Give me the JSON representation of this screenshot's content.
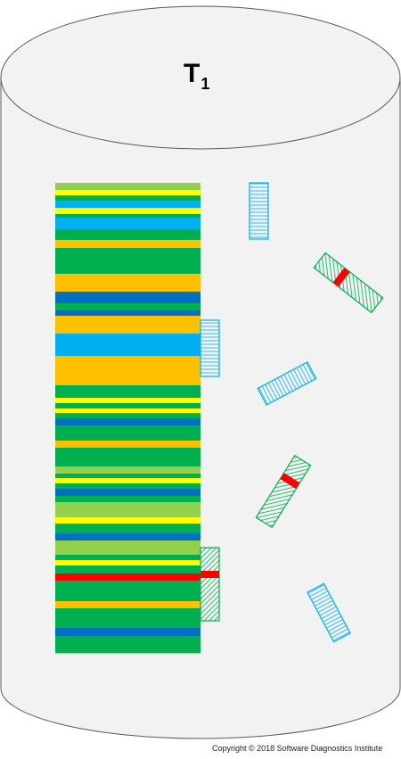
{
  "title": {
    "main": "T",
    "subscript": "1"
  },
  "copyright": "Copyright © 2018 Software Diagnostics Institute",
  "colors": {
    "cylinder_fill": "#f2f2f2",
    "cylinder_stroke": "#595959",
    "light_green": "#92d050",
    "yellow": "#ffff00",
    "light_blue": "#00b0f0",
    "green": "#00b050",
    "orange": "#ffc000",
    "dark_blue": "#0070c0",
    "red": "#ff0000"
  },
  "main_stack": {
    "bands": [
      {
        "color": "light_green",
        "weight": 8
      },
      {
        "color": "yellow",
        "weight": 6
      },
      {
        "color": "green",
        "weight": 6
      },
      {
        "color": "light_blue",
        "weight": 8
      },
      {
        "color": "yellow",
        "weight": 7
      },
      {
        "color": "green",
        "weight": 4
      },
      {
        "color": "light_blue",
        "weight": 13
      },
      {
        "color": "green",
        "weight": 12
      },
      {
        "color": "orange",
        "weight": 9
      },
      {
        "color": "green",
        "weight": 29
      },
      {
        "color": "orange",
        "weight": 20
      },
      {
        "color": "dark_blue",
        "weight": 13
      },
      {
        "color": "green",
        "weight": 8
      },
      {
        "color": "dark_blue",
        "weight": 6
      },
      {
        "color": "orange",
        "weight": 20
      },
      {
        "color": "light_blue",
        "weight": 25
      },
      {
        "color": "orange",
        "weight": 33
      },
      {
        "color": "green",
        "weight": 14
      },
      {
        "color": "yellow",
        "weight": 6
      },
      {
        "color": "green",
        "weight": 6
      },
      {
        "color": "yellow",
        "weight": 5
      },
      {
        "color": "green",
        "weight": 6
      },
      {
        "color": "dark_blue",
        "weight": 8
      },
      {
        "color": "green",
        "weight": 17
      },
      {
        "color": "orange",
        "weight": 8
      },
      {
        "color": "green",
        "weight": 21
      },
      {
        "color": "light_green",
        "weight": 8
      },
      {
        "color": "green",
        "weight": 5
      },
      {
        "color": "yellow",
        "weight": 6
      },
      {
        "color": "green",
        "weight": 6
      },
      {
        "color": "dark_blue",
        "weight": 8
      },
      {
        "color": "green",
        "weight": 7
      },
      {
        "color": "light_green",
        "weight": 17
      },
      {
        "color": "yellow",
        "weight": 7
      },
      {
        "color": "green",
        "weight": 11
      },
      {
        "color": "dark_blue",
        "weight": 8
      },
      {
        "color": "light_green",
        "weight": 16
      },
      {
        "color": "green",
        "weight": 6
      },
      {
        "color": "yellow",
        "weight": 6
      },
      {
        "color": "green",
        "weight": 9
      },
      {
        "color": "red",
        "weight": 8
      },
      {
        "color": "green",
        "weight": 23
      },
      {
        "color": "orange",
        "weight": 8
      },
      {
        "color": "green",
        "weight": 22
      },
      {
        "color": "dark_blue",
        "weight": 9
      },
      {
        "color": "green",
        "weight": 19
      }
    ]
  },
  "fragments": [
    {
      "id": "attached-blue",
      "color": "light_blue",
      "attached": true,
      "has_red_mark": false
    },
    {
      "id": "attached-green",
      "color": "green",
      "attached": true,
      "has_red_mark": true
    },
    {
      "id": "loose-blue-vertical",
      "color": "light_blue",
      "attached": false,
      "has_red_mark": false
    },
    {
      "id": "loose-green-upper",
      "color": "green",
      "attached": false,
      "has_red_mark": true
    },
    {
      "id": "loose-blue-tilted",
      "color": "light_blue",
      "attached": false,
      "has_red_mark": false
    },
    {
      "id": "loose-green-lower",
      "color": "green",
      "attached": false,
      "has_red_mark": true
    },
    {
      "id": "loose-blue-bottom",
      "color": "light_blue",
      "attached": false,
      "has_red_mark": false
    }
  ]
}
